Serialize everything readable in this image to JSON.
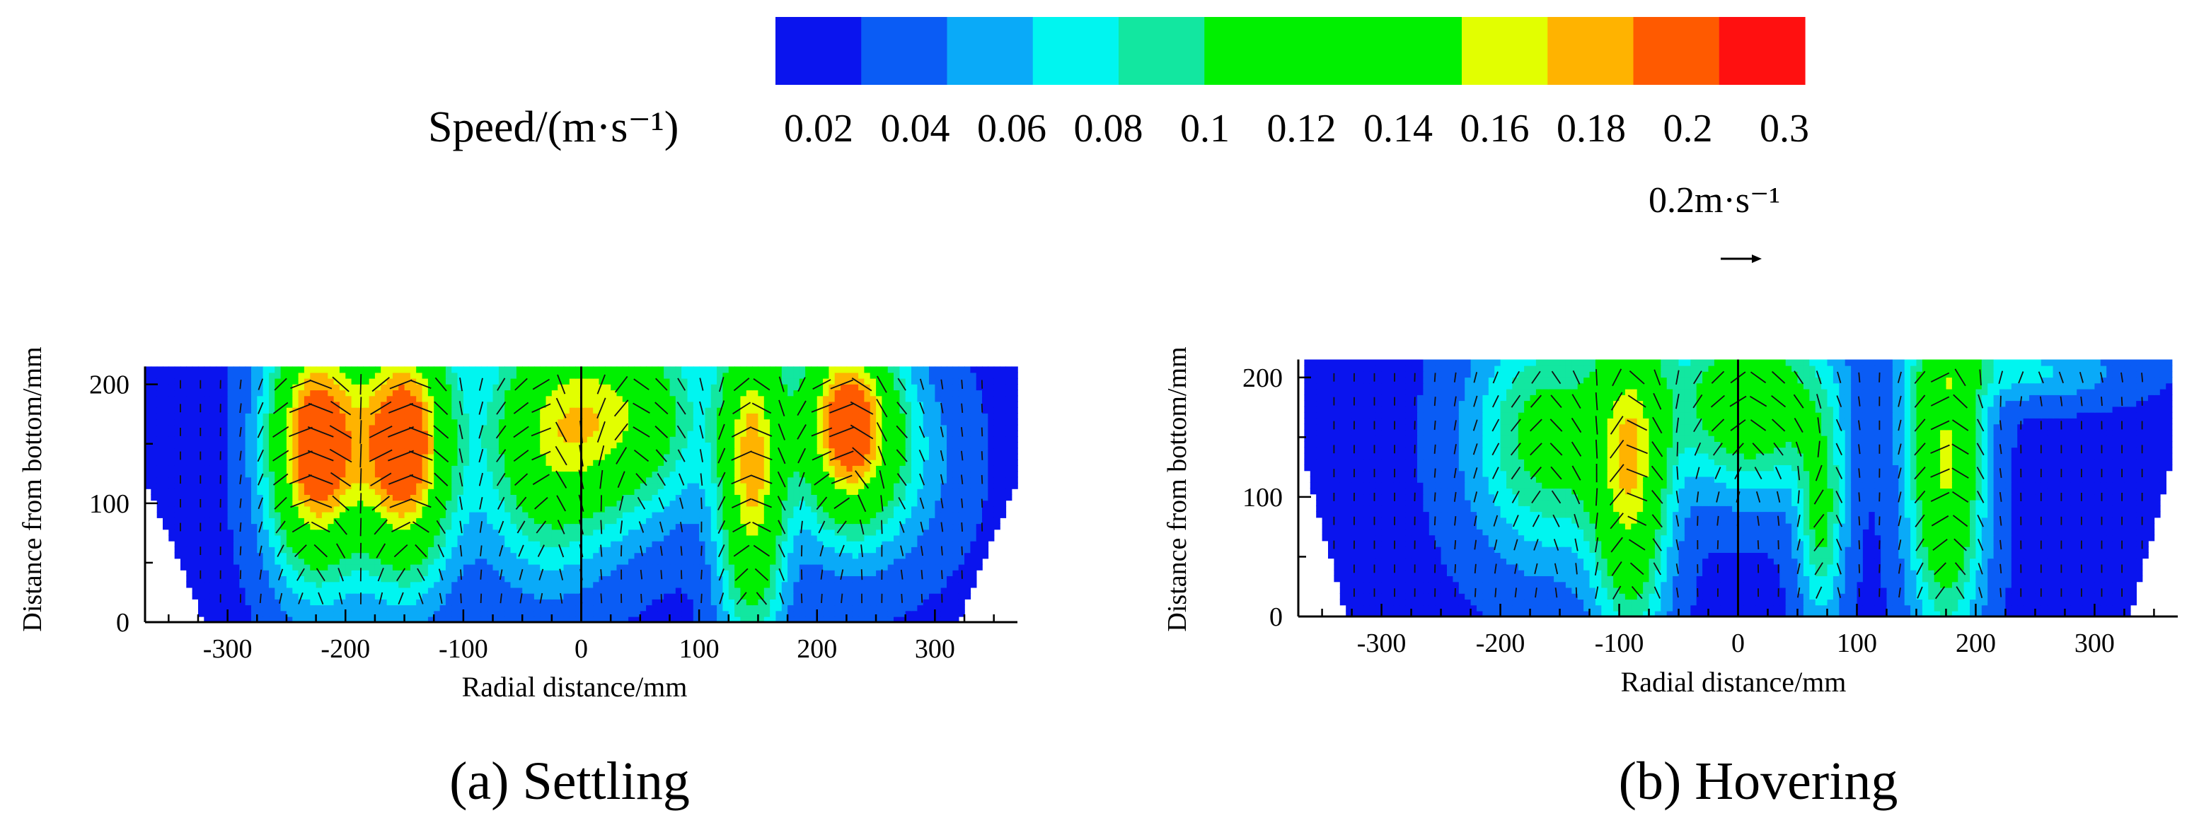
{
  "legend": {
    "title": "Speed/(m·s⁻¹)",
    "colors": [
      "#0a14ee",
      "#0a5cf5",
      "#0aaaf8",
      "#00f5f0",
      "#12e7a0",
      "#00f000",
      "#00f000",
      "#00f000",
      "#e2ff00",
      "#ffb300",
      "#ff5a00",
      "#ff1010"
    ],
    "labels": [
      "0.02",
      "0.04",
      "0.06",
      "0.08",
      "0.1",
      "0.12",
      "0.14",
      "0.16",
      "0.18",
      "0.2",
      "0.3"
    ],
    "reference_vector_label": "0.2m·s⁻¹",
    "reference_vector_speed": 0.2
  },
  "chart_data": [
    {
      "type": "contour-vector",
      "caption": "(a) Settling",
      "title": "",
      "xlabel": "Radial distance/mm",
      "ylabel": "Distance from bottom/mm",
      "xlim": [
        -370,
        370
      ],
      "ylim": [
        0,
        220
      ],
      "xticks": [
        -300,
        -200,
        -100,
        0,
        100,
        200,
        300
      ],
      "yticks": [
        0,
        100,
        200
      ],
      "xtick_labels": [
        "-300",
        "-200",
        "-100",
        "0",
        "100",
        "200",
        "300"
      ],
      "ytick_labels": [
        "0",
        "100",
        "200"
      ],
      "domain_top": 215,
      "bottom_half_width": 320,
      "top_half_width": 370,
      "taper_height": 120,
      "background_speed": 0.015,
      "features": [
        {
          "x": -225,
          "y": 150,
          "sx": 28,
          "sy": 75,
          "speed": 0.22
        },
        {
          "x": -150,
          "y": 150,
          "sx": 28,
          "sy": 75,
          "speed": 0.22
        },
        {
          "x": -30,
          "y": 155,
          "sx": 40,
          "sy": 75,
          "speed": 0.12
        },
        {
          "x": 40,
          "y": 175,
          "sx": 45,
          "sy": 60,
          "speed": 0.12
        },
        {
          "x": 145,
          "y": 130,
          "sx": 20,
          "sy": 100,
          "speed": 0.17
        },
        {
          "x": 225,
          "y": 170,
          "sx": 28,
          "sy": 60,
          "speed": 0.19
        },
        {
          "x": 260,
          "y": 140,
          "sx": 40,
          "sy": 60,
          "speed": 0.05
        }
      ]
    },
    {
      "type": "contour-vector",
      "caption": "(b) Hovering",
      "title": "",
      "xlabel": "Radial distance/mm",
      "ylabel": "Distance from bottom/mm",
      "xlim": [
        -370,
        370
      ],
      "ylim": [
        0,
        220
      ],
      "xticks": [
        -300,
        -200,
        -100,
        0,
        100,
        200,
        300
      ],
      "yticks": [
        0,
        100,
        200
      ],
      "xtick_labels": [
        "-300",
        "-200",
        "-100",
        "0",
        "100",
        "200",
        "300"
      ],
      "ytick_labels": [
        "0",
        "100",
        "200"
      ],
      "domain_top": 215,
      "bottom_half_width": 330,
      "top_half_width": 365,
      "taper_height": 130,
      "background_speed": 0.015,
      "features": [
        {
          "x": -160,
          "y": 150,
          "sx": 45,
          "sy": 70,
          "speed": 0.1
        },
        {
          "x": -90,
          "y": 120,
          "sx": 22,
          "sy": 100,
          "speed": 0.14
        },
        {
          "x": 10,
          "y": 180,
          "sx": 45,
          "sy": 50,
          "speed": 0.13
        },
        {
          "x": 70,
          "y": 80,
          "sx": 14,
          "sy": 60,
          "speed": 0.09
        },
        {
          "x": 175,
          "y": 130,
          "sx": 22,
          "sy": 100,
          "speed": 0.15
        },
        {
          "x": 240,
          "y": 205,
          "sx": 60,
          "sy": 18,
          "speed": 0.05
        }
      ]
    }
  ]
}
